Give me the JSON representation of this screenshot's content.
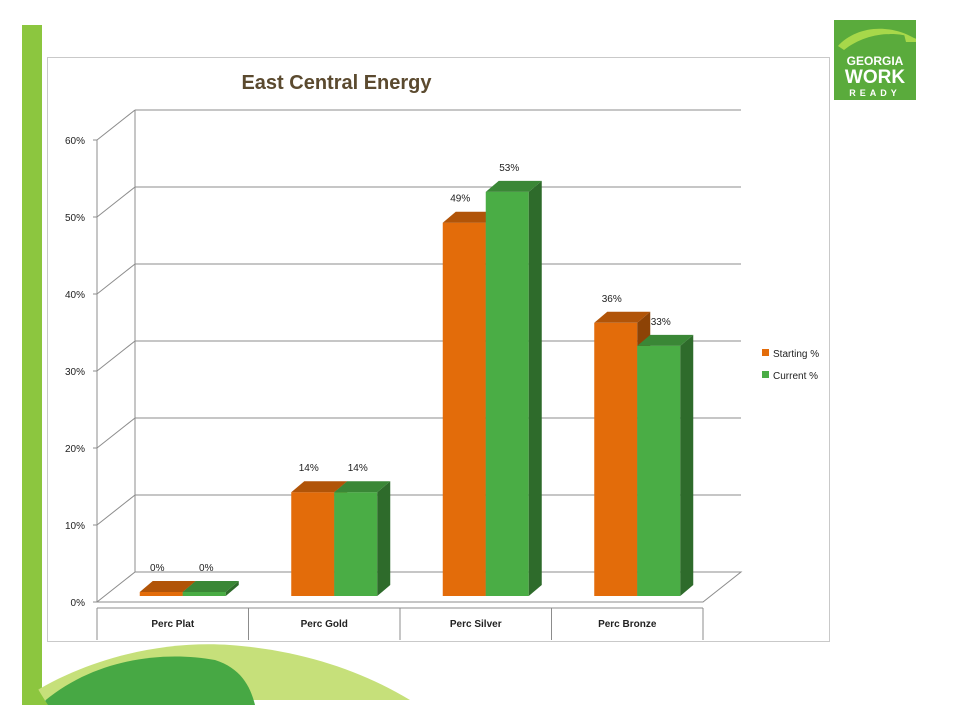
{
  "slide": {
    "logo": {
      "text_line1": "GEORGIA",
      "text_line2": "WORK",
      "text_line3": "READY",
      "colors": {
        "green": "#5aab3c",
        "light_green": "#a7d84a"
      }
    }
  },
  "chart_data": {
    "type": "bar",
    "title": "East Central Energy",
    "categories": [
      "Perc Plat",
      "Perc Gold",
      "Perc Silver",
      "Perc Bronze"
    ],
    "series": [
      {
        "name": "Starting %",
        "values": [
          0,
          14,
          49,
          36
        ],
        "labels": [
          "0%",
          "14%",
          "49%",
          "36%"
        ],
        "color": "#e36c0a"
      },
      {
        "name": "Current %",
        "values": [
          0,
          14,
          53,
          33
        ],
        "labels": [
          "0%",
          "14%",
          "53%",
          "33%"
        ],
        "color": "#4aad45"
      }
    ],
    "ylim": [
      0,
      60
    ],
    "yticks": [
      "0%",
      "10%",
      "20%",
      "30%",
      "40%",
      "50%",
      "60%"
    ],
    "grid": true,
    "legend_position": "right"
  }
}
